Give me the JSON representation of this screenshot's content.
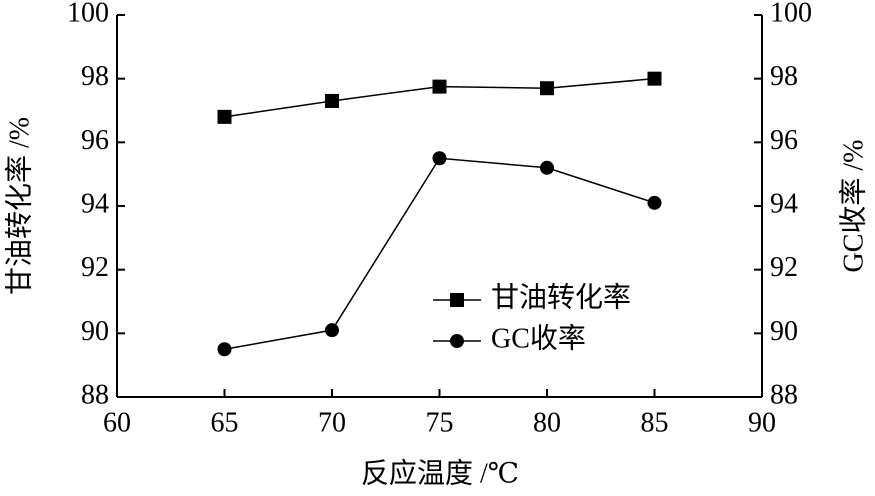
{
  "chart_data": {
    "type": "line",
    "x_label": "反应温度 /℃",
    "y_label": "甘油转化率 /%",
    "y2_label": "GC收率 /%",
    "x": [
      65,
      70,
      75,
      80,
      85
    ],
    "series": [
      {
        "name": "甘油转化率",
        "color": "#000000",
        "marker": "square",
        "values": [
          96.8,
          97.3,
          97.75,
          97.7,
          98.0
        ]
      },
      {
        "name": "GC收率",
        "color": "#000000",
        "marker": "circle",
        "axis": "y2",
        "values": [
          89.5,
          90.1,
          95.5,
          95.2,
          94.1
        ]
      }
    ],
    "xlim": [
      60,
      90
    ],
    "xticks": [
      60,
      65,
      70,
      75,
      80,
      85,
      90
    ],
    "ylim": [
      88,
      100
    ],
    "yticks": [
      88,
      90,
      92,
      94,
      96,
      98,
      100
    ],
    "y2lim": [
      88,
      100
    ],
    "y2ticks": [
      88,
      90,
      92,
      94,
      96,
      98,
      100
    ],
    "grid": false,
    "legend": "center-right"
  }
}
